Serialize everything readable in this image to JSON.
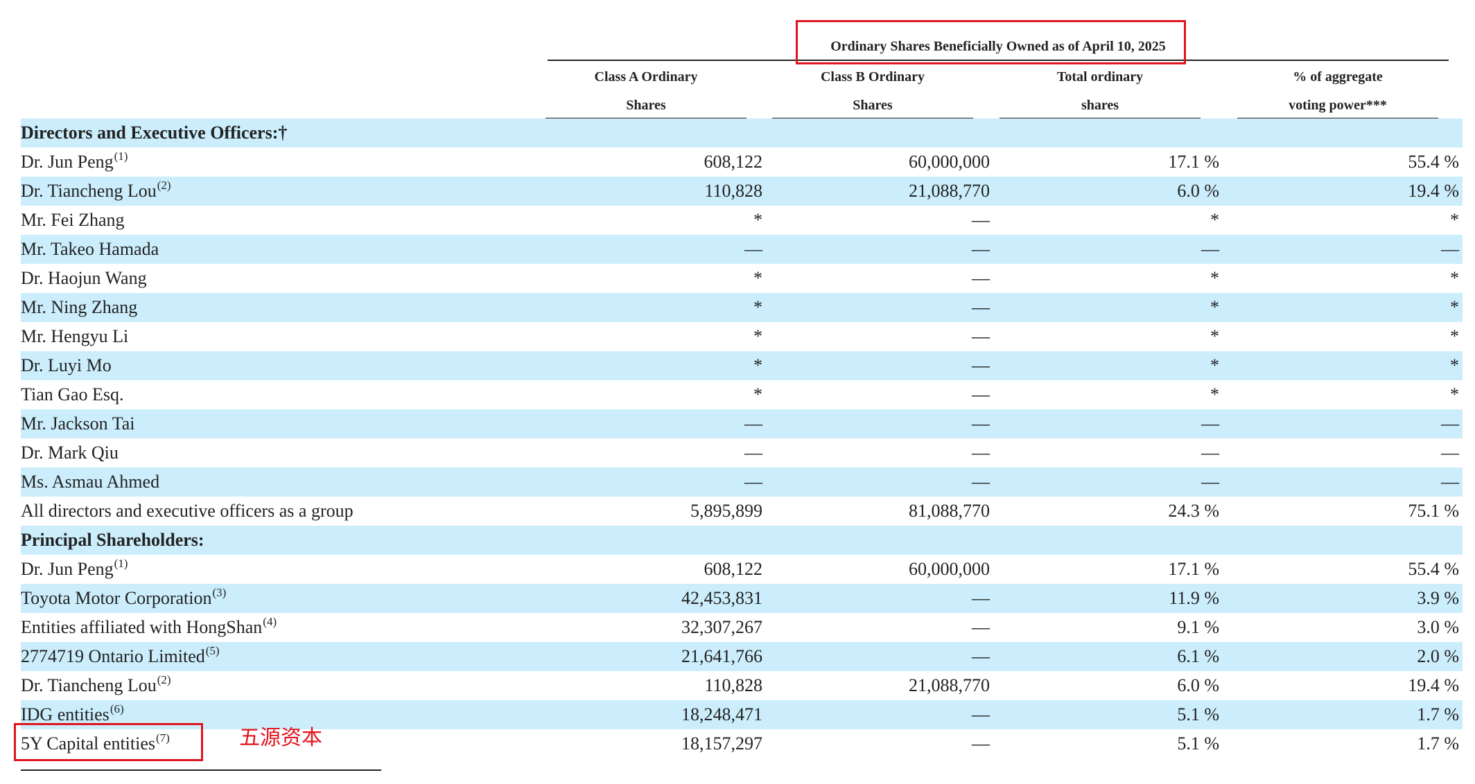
{
  "header": {
    "group_title": "Ordinary Shares Beneficially Owned as of April 10, 2025",
    "columns": [
      {
        "line1": "Class A Ordinary",
        "line2": "Shares"
      },
      {
        "line1": "Class B Ordinary",
        "line2": "Shares"
      },
      {
        "line1": "Total ordinary",
        "line2": "shares"
      },
      {
        "line1": "% of aggregate",
        "line2": "voting power***"
      }
    ]
  },
  "rows": [
    {
      "name": "Directors and Executive Officers:†",
      "section": true,
      "shaded": true
    },
    {
      "name": "Dr. Jun Peng",
      "sup": "(1)",
      "a": "608,122",
      "b": "60,000,000",
      "total": "17.1 %",
      "vote": "55.4 %"
    },
    {
      "name": "Dr. Tiancheng Lou",
      "sup": "(2)",
      "a": "110,828",
      "b": "21,088,770",
      "total": "6.0 %",
      "vote": "19.4 %",
      "shaded": true
    },
    {
      "name": "Mr. Fei Zhang",
      "a": "*",
      "b": "—",
      "total": "*",
      "vote": "*"
    },
    {
      "name": "Mr. Takeo Hamada",
      "a": "—",
      "b": "—",
      "total": "—",
      "vote": "—",
      "shaded": true
    },
    {
      "name": "Dr. Haojun Wang",
      "a": "*",
      "b": "—",
      "total": "*",
      "vote": "*"
    },
    {
      "name": "Mr. Ning Zhang",
      "a": "*",
      "b": "—",
      "total": "*",
      "vote": "*",
      "shaded": true
    },
    {
      "name": "Mr. Hengyu Li",
      "a": "*",
      "b": "—",
      "total": "*",
      "vote": "*"
    },
    {
      "name": "Dr. Luyi Mo",
      "a": "*",
      "b": "—",
      "total": "*",
      "vote": "*",
      "shaded": true
    },
    {
      "name": "Tian Gao Esq.",
      "a": "*",
      "b": "—",
      "total": "*",
      "vote": "*"
    },
    {
      "name": "Mr. Jackson Tai",
      "a": "—",
      "b": "—",
      "total": "—",
      "vote": "—",
      "shaded": true
    },
    {
      "name": "Dr. Mark Qiu",
      "a": "—",
      "b": "—",
      "total": "—",
      "vote": "—"
    },
    {
      "name": "Ms. Asmau Ahmed",
      "a": "—",
      "b": "—",
      "total": "—",
      "vote": "—",
      "shaded": true
    },
    {
      "name": "All directors and executive officers as a group",
      "a": "5,895,899",
      "b": "81,088,770",
      "total": "24.3 %",
      "vote": "75.1 %"
    },
    {
      "name": "Principal Shareholders:",
      "section": true,
      "shaded": true
    },
    {
      "name": "Dr. Jun Peng",
      "sup": "(1)",
      "a": "608,122",
      "b": "60,000,000",
      "total": "17.1 %",
      "vote": "55.4 %"
    },
    {
      "name": "Toyota Motor Corporation",
      "sup": "(3)",
      "a": "42,453,831",
      "b": "—",
      "total": "11.9 %",
      "vote": "3.9 %",
      "shaded": true
    },
    {
      "name": "Entities affiliated with HongShan",
      "sup": "(4)",
      "a": "32,307,267",
      "b": "—",
      "total": "9.1 %",
      "vote": "3.0 %"
    },
    {
      "name": "2774719 Ontario Limited",
      "sup": "(5)",
      "a": "21,641,766",
      "b": "—",
      "total": "6.1 %",
      "vote": "2.0 %",
      "shaded": true
    },
    {
      "name": "Dr. Tiancheng Lou",
      "sup": "(2)",
      "a": "110,828",
      "b": "21,088,770",
      "total": "6.0 %",
      "vote": "19.4 %"
    },
    {
      "name": "IDG entities",
      "sup": "(6)",
      "a": "18,248,471",
      "b": "—",
      "total": "5.1 %",
      "vote": "1.7 %",
      "shaded": true
    },
    {
      "name": "5Y Capital entities",
      "sup": "(7)",
      "a": "18,157,297",
      "b": "—",
      "total": "5.1 %",
      "vote": "1.7 %"
    }
  ],
  "annotation": {
    "note": "五源资本",
    "highlight_color": "#e0141e",
    "shade_color": "#cceefc"
  }
}
